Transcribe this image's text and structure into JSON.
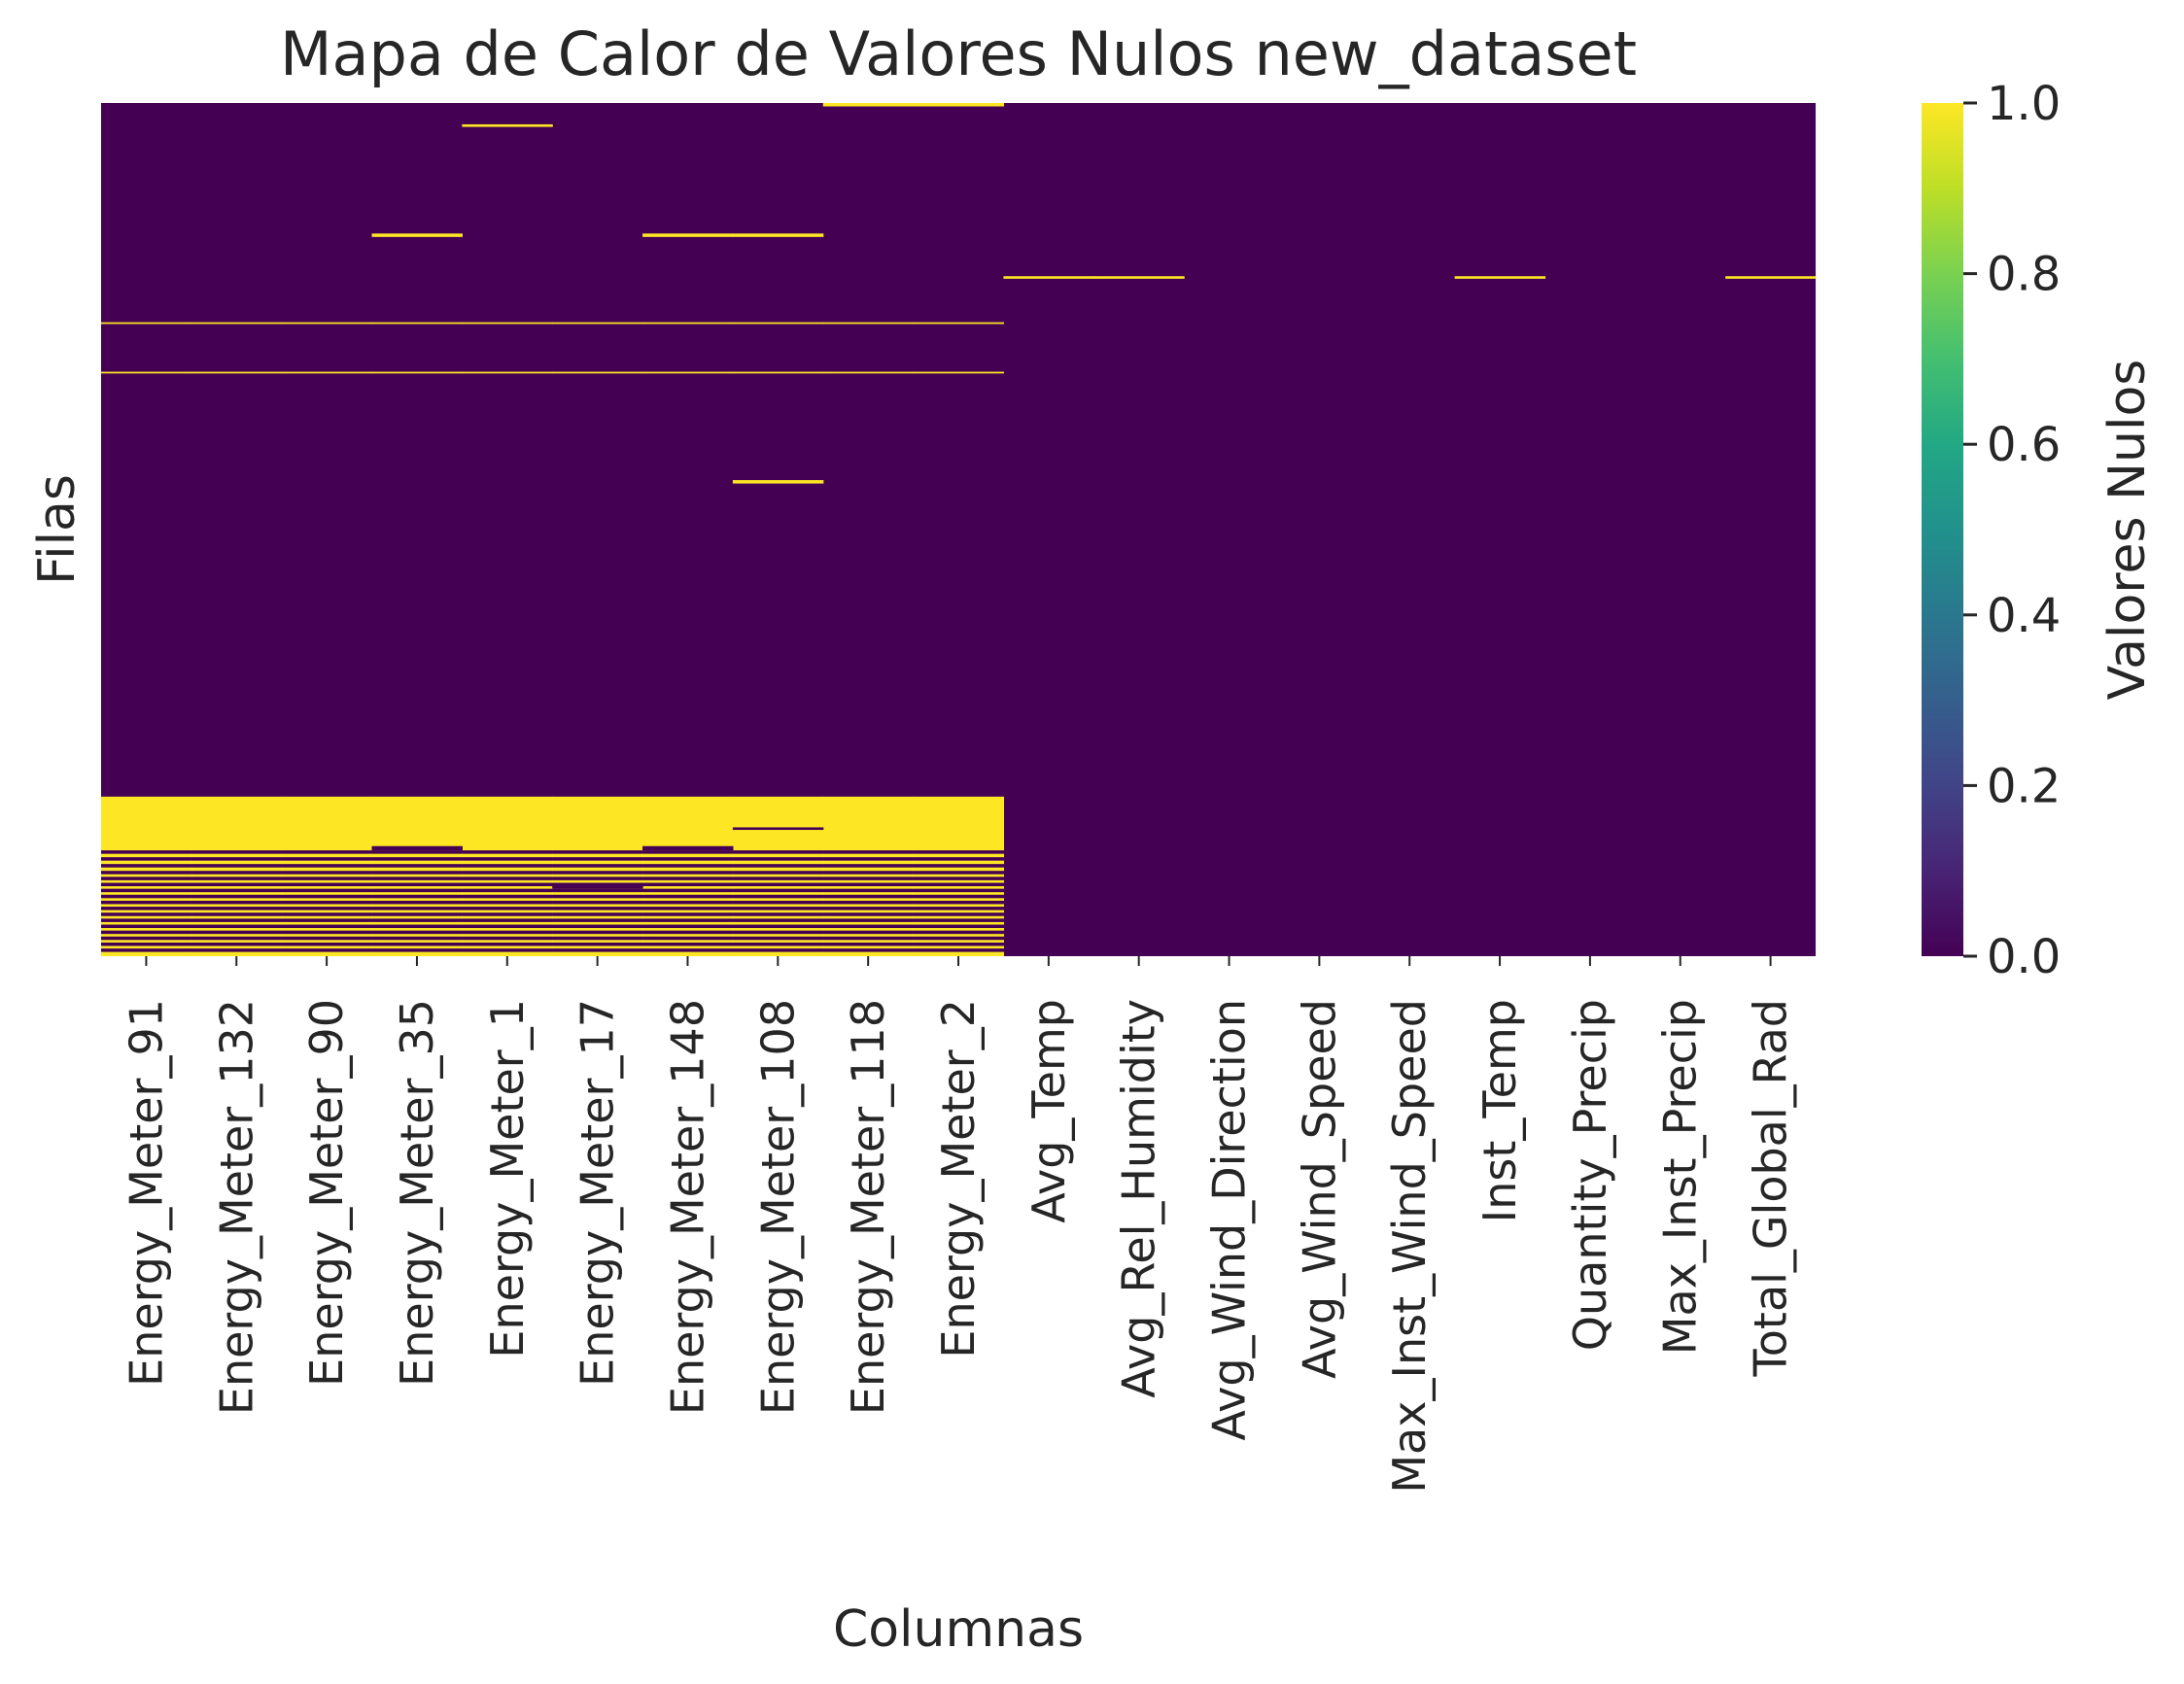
{
  "chart_data": {
    "type": "heatmap",
    "title": "Mapa de Calor de Valores Nulos new_dataset",
    "xlabel": "Columnas",
    "ylabel": "Filas",
    "columns": [
      "Energy_Meter_91",
      "Energy_Meter_132",
      "Energy_Meter_90",
      "Energy_Meter_35",
      "Energy_Meter_1",
      "Energy_Meter_17",
      "Energy_Meter_148",
      "Energy_Meter_108",
      "Energy_Meter_118",
      "Energy_Meter_2",
      "Avg_Temp",
      "Avg_Rel_Humidity",
      "Avg_Wind_Direction",
      "Avg_Wind_Speed",
      "Max_Inst_Wind_Speed",
      "Inst_Temp",
      "Quantity_Precip",
      "Max_Inst_Precip",
      "Total_Global_Rad"
    ],
    "rows_normalized": true,
    "value_scale": [
      0,
      1
    ],
    "null_segments": [
      {
        "cols": [
          8,
          9
        ],
        "rows": [
          0.0,
          0.004
        ]
      },
      {
        "cols": [
          4
        ],
        "rows": [
          0.025,
          0.028
        ]
      },
      {
        "cols": [
          3
        ],
        "rows": [
          0.153,
          0.157
        ]
      },
      {
        "cols": [
          6,
          7
        ],
        "rows": [
          0.153,
          0.157
        ]
      },
      {
        "cols": [
          10,
          11
        ],
        "rows": [
          0.203,
          0.206
        ]
      },
      {
        "cols": [
          15
        ],
        "rows": [
          0.203,
          0.206
        ]
      },
      {
        "cols": [
          18
        ],
        "rows": [
          0.203,
          0.206
        ]
      },
      {
        "cols": [
          0,
          1,
          2,
          3,
          4,
          5,
          6,
          7,
          8,
          9
        ],
        "rows": [
          0.257,
          0.259
        ]
      },
      {
        "cols": [
          0,
          1,
          2,
          3,
          4,
          5,
          6,
          7,
          8,
          9
        ],
        "rows": [
          0.315,
          0.317
        ]
      },
      {
        "cols": [
          7
        ],
        "rows": [
          0.442,
          0.446
        ]
      },
      {
        "cols": [
          0,
          1,
          2,
          3,
          4,
          5,
          6,
          7,
          8,
          9
        ],
        "rows": [
          0.813,
          0.876
        ]
      },
      {
        "cols": [
          0,
          1,
          2,
          3,
          4,
          5,
          6,
          7,
          8,
          9
        ],
        "rows": [
          0.88,
          0.884
        ]
      },
      {
        "cols": [
          0,
          1,
          2,
          3,
          4,
          5,
          6,
          7,
          8,
          9
        ],
        "rows": [
          0.888,
          0.892
        ]
      },
      {
        "cols": [
          0,
          1,
          2,
          3,
          4,
          5,
          6,
          7,
          8,
          9
        ],
        "rows": [
          0.896,
          0.9
        ]
      },
      {
        "cols": [
          0,
          1,
          2,
          3,
          4,
          5,
          6,
          7,
          8,
          9
        ],
        "rows": [
          0.904,
          0.907
        ]
      },
      {
        "cols": [
          0,
          1,
          2,
          3,
          4,
          5,
          6,
          7,
          8,
          9
        ],
        "rows": [
          0.911,
          0.914
        ]
      },
      {
        "cols": [
          0,
          1,
          2,
          3,
          4,
          5,
          6,
          7,
          8,
          9
        ],
        "rows": [
          0.918,
          0.921
        ]
      },
      {
        "cols": [
          0,
          1,
          2,
          3,
          4,
          5,
          6,
          7,
          8,
          9
        ],
        "rows": [
          0.925,
          0.928
        ]
      },
      {
        "cols": [
          0,
          1,
          2,
          3,
          4,
          5,
          6,
          7,
          8,
          9
        ],
        "rows": [
          0.932,
          0.935
        ]
      },
      {
        "cols": [
          0,
          1,
          2,
          3,
          4,
          5,
          6,
          7,
          8,
          9
        ],
        "rows": [
          0.939,
          0.942
        ]
      },
      {
        "cols": [
          0,
          1,
          2,
          3,
          4,
          5,
          6,
          7,
          8,
          9
        ],
        "rows": [
          0.946,
          0.949
        ]
      },
      {
        "cols": [
          0,
          1,
          2,
          3,
          4,
          5,
          6,
          7,
          8,
          9
        ],
        "rows": [
          0.953,
          0.956
        ]
      },
      {
        "cols": [
          0,
          1,
          2,
          3,
          4,
          5,
          6,
          7,
          8,
          9
        ],
        "rows": [
          0.96,
          0.963
        ]
      },
      {
        "cols": [
          0,
          1,
          2,
          3,
          4,
          5,
          6,
          7,
          8,
          9
        ],
        "rows": [
          0.967,
          0.97
        ]
      },
      {
        "cols": [
          0,
          1,
          2,
          3,
          4,
          5,
          6,
          7,
          8,
          9
        ],
        "rows": [
          0.974,
          0.977
        ]
      },
      {
        "cols": [
          0,
          1,
          2,
          3,
          4,
          5,
          6,
          7,
          8,
          9
        ],
        "rows": [
          0.981,
          0.984
        ]
      },
      {
        "cols": [
          0,
          1,
          2,
          3,
          4,
          5,
          6,
          7,
          8,
          9
        ],
        "rows": [
          0.988,
          0.991
        ]
      },
      {
        "cols": [
          0,
          1,
          2,
          3,
          4,
          5,
          6,
          7,
          8,
          9
        ],
        "rows": [
          0.995,
          1.0
        ]
      }
    ],
    "gaps_in_block": [
      {
        "cols": [
          3
        ],
        "rows": [
          0.871,
          0.876
        ]
      },
      {
        "cols": [
          6
        ],
        "rows": [
          0.871,
          0.876
        ]
      },
      {
        "cols": [
          7
        ],
        "rows": [
          0.849,
          0.852
        ]
      },
      {
        "cols": [
          5
        ],
        "rows": [
          0.918,
          0.921
        ]
      }
    ],
    "colorbar": {
      "label": "Valores Nulos",
      "cmap": "viridis",
      "range": [
        0,
        1
      ],
      "ticks": [
        "0.0",
        "0.2",
        "0.4",
        "0.6",
        "0.8",
        "1.0"
      ]
    },
    "colors": {
      "zero": "#440154",
      "one": "#fde725"
    }
  }
}
